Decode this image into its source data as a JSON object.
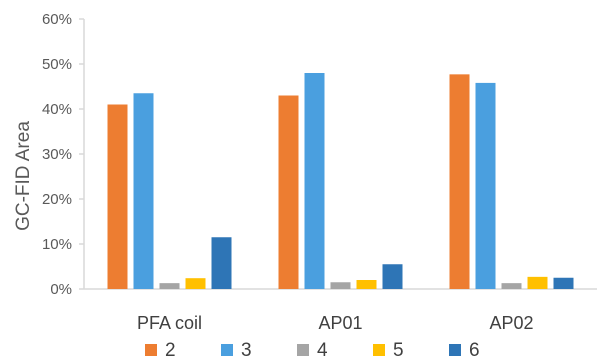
{
  "chart_data": {
    "type": "bar",
    "title": "",
    "xlabel": "",
    "ylabel": "GC-FID Area",
    "ylim": [
      0,
      60
    ],
    "yticks": [
      0,
      10,
      20,
      30,
      40,
      50,
      60
    ],
    "ytick_labels": [
      "0%",
      "10%",
      "20%",
      "30%",
      "40%",
      "50%",
      "60%"
    ],
    "value_unit": "%",
    "grid": false,
    "legend_position": "bottom",
    "categories": [
      "PFA coil",
      "AP01",
      "AP02"
    ],
    "series": [
      {
        "name": "2",
        "color": "#ED7D31",
        "values": [
          41.0,
          43.0,
          47.7
        ]
      },
      {
        "name": "3",
        "color": "#4A9FDF",
        "values": [
          43.5,
          48.0,
          45.8
        ]
      },
      {
        "name": "4",
        "color": "#A5A5A5",
        "values": [
          1.3,
          1.5,
          1.3
        ]
      },
      {
        "name": "5",
        "color": "#FFC000",
        "values": [
          2.4,
          2.0,
          2.7
        ]
      },
      {
        "name": "6",
        "color": "#2E75B6",
        "values": [
          11.5,
          5.5,
          2.5
        ]
      }
    ]
  }
}
